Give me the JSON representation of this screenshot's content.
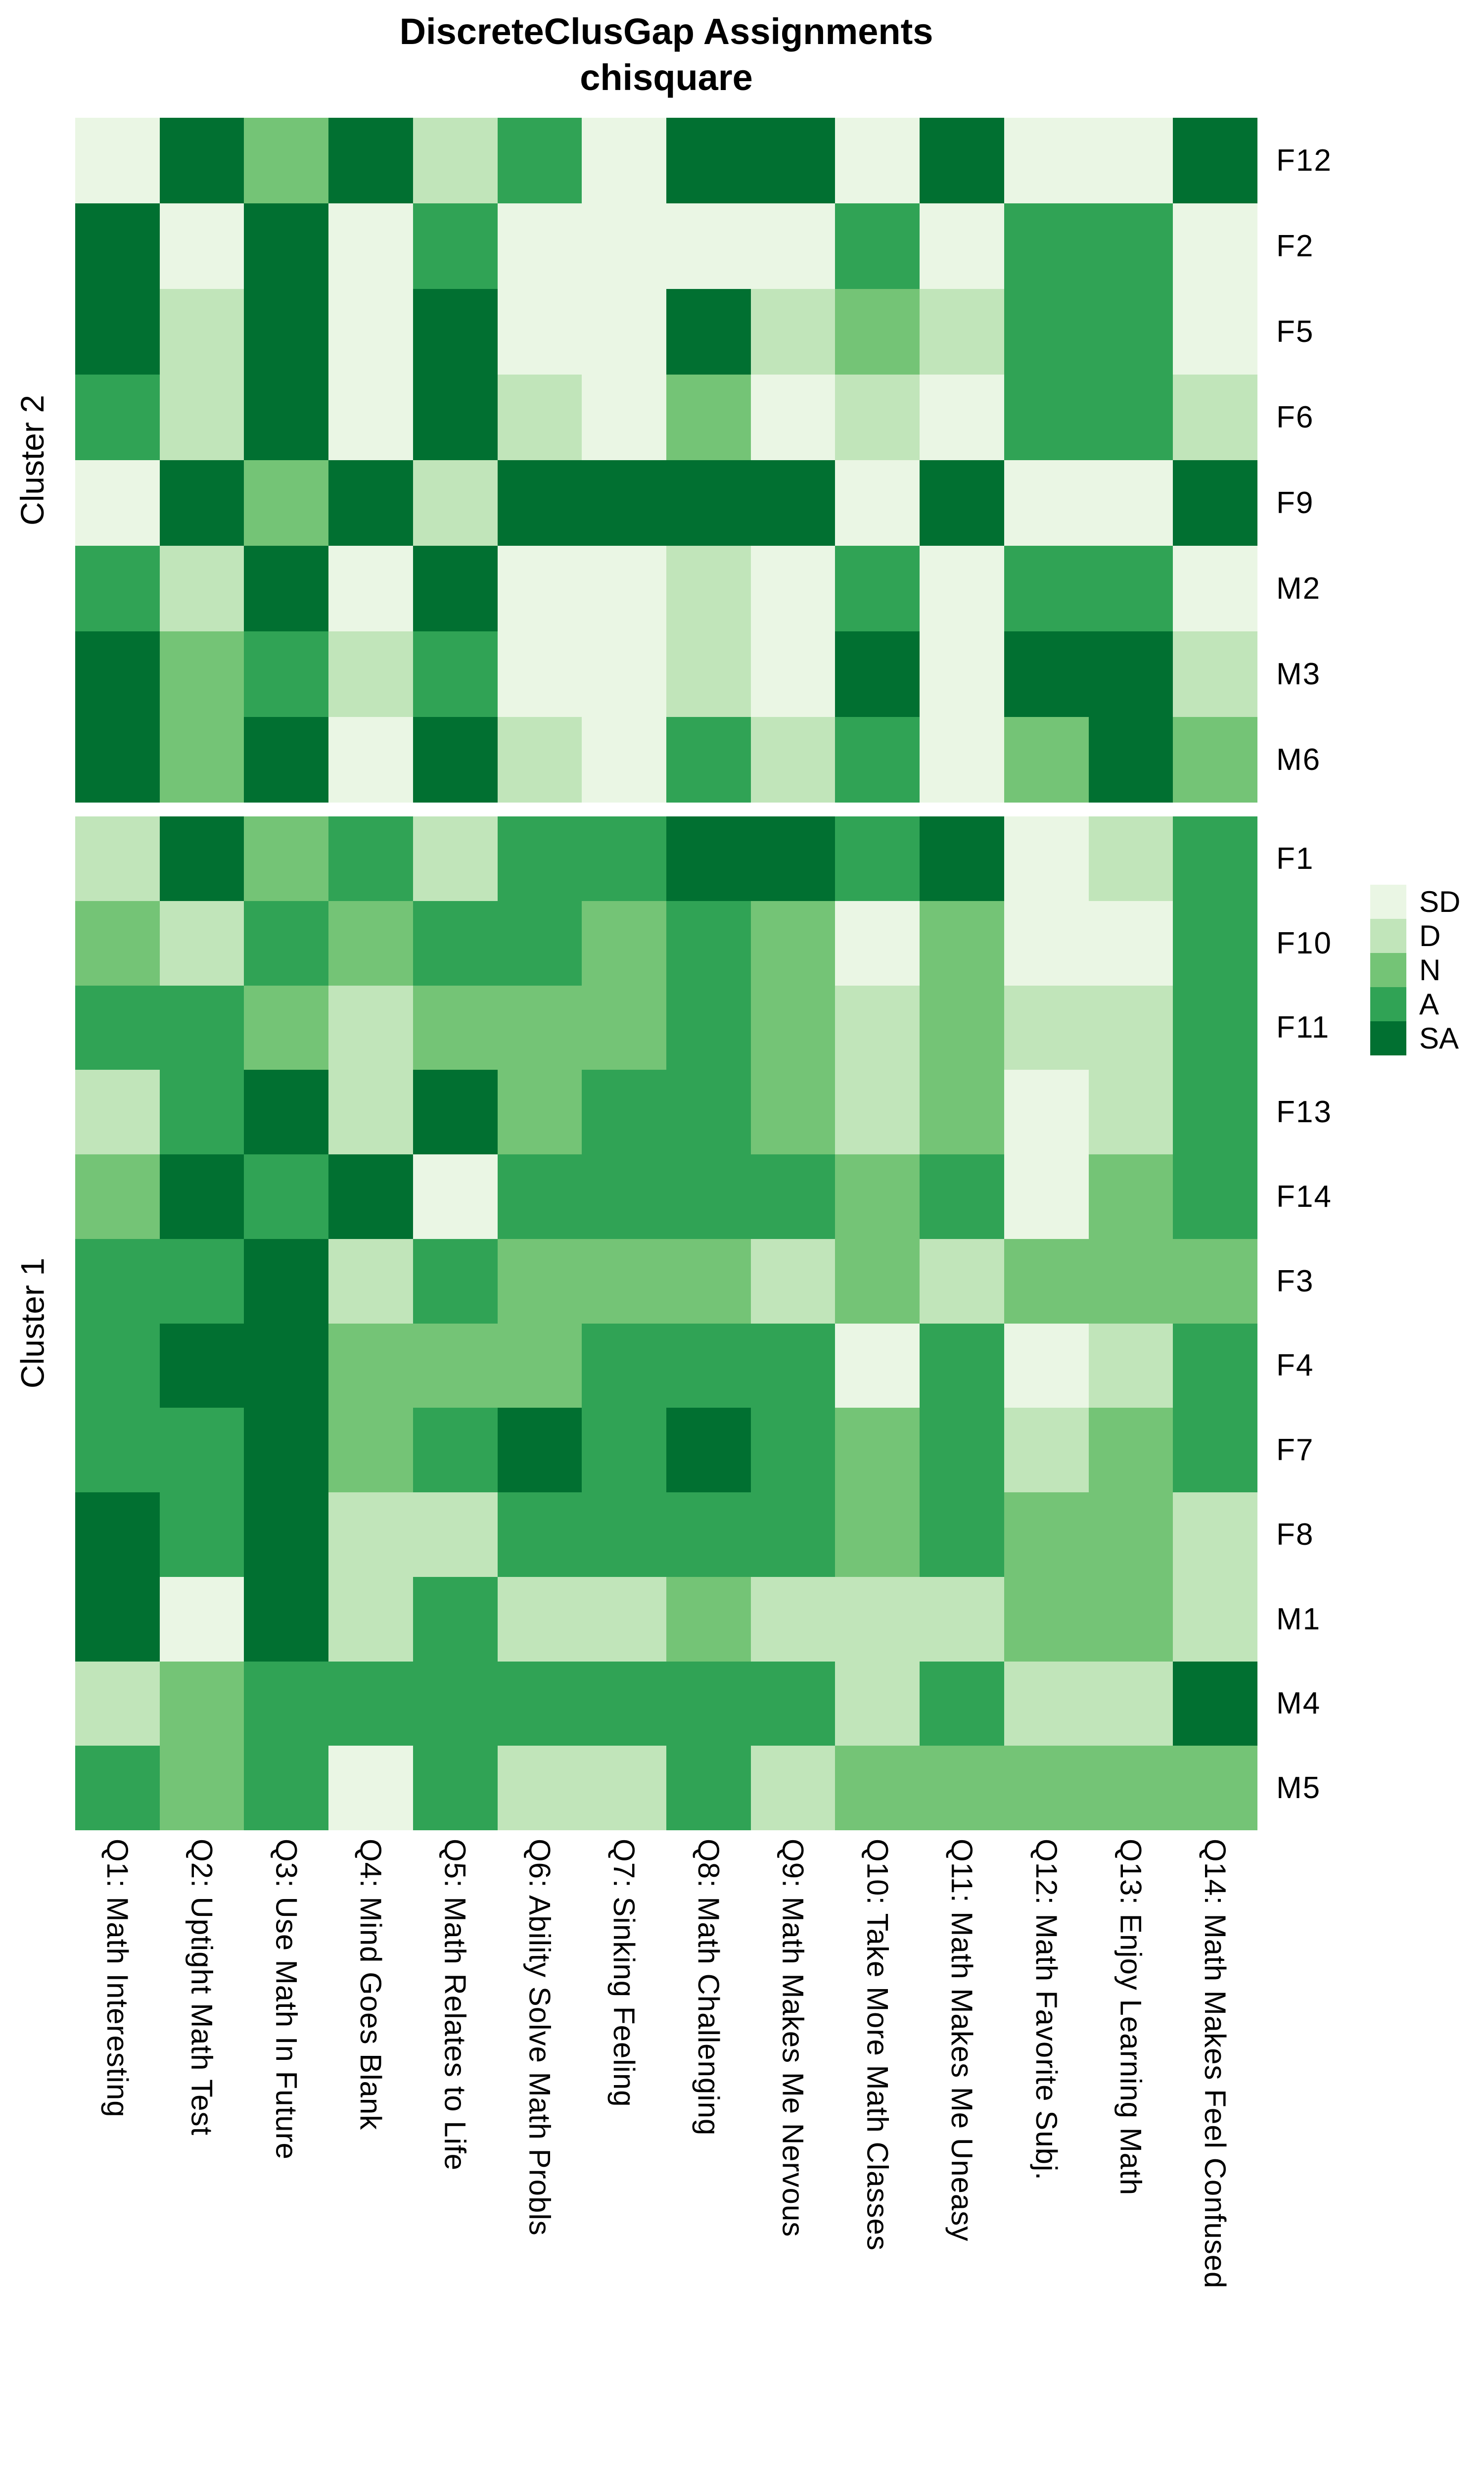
{
  "chart_data": {
    "type": "heatmap",
    "title": "DiscreteClusGap Assignments chisquare",
    "title_lines": [
      "DiscreteClusGap Assignments",
      "chisquare"
    ],
    "x_labels": [
      "Q1: Math Interesting",
      "Q2: Uptight Math Test",
      "Q3: Use Math In Future",
      "Q4: Mind Goes Blank",
      "Q5: Math Relates to Life",
      "Q6: Ability Solve Math Probls",
      "Q7: Sinking Feeling",
      "Q8: Math Challenging",
      "Q9: Math Makes Me Nervous",
      "Q10: Take More Math Classes",
      "Q11: Math Makes Me Uneasy",
      "Q12: Math Favorite Subj.",
      "Q13: Enjoy Learning Math",
      "Q14: Math Makes Feel Confused"
    ],
    "value_levels": [
      "SD",
      "D",
      "N",
      "A",
      "SA"
    ],
    "value_scale": {
      "SD": "#EAF6E4",
      "D": "#C1E5BA",
      "N": "#74C476",
      "A": "#30A355",
      "SA": "#017031"
    },
    "legend": [
      {
        "label": "SD",
        "color": "#EAF6E4"
      },
      {
        "label": "D",
        "color": "#C1E5BA"
      },
      {
        "label": "N",
        "color": "#74C476"
      },
      {
        "label": "A",
        "color": "#30A355"
      },
      {
        "label": "SA",
        "color": "#017031"
      }
    ],
    "row_groups": [
      {
        "group": "Cluster 2",
        "rows": [
          {
            "id": "F12",
            "values": [
              "SD",
              "SA",
              "N",
              "SA",
              "D",
              "A",
              "SD",
              "SA",
              "SA",
              "SD",
              "SA",
              "SD",
              "SD",
              "SA"
            ]
          },
          {
            "id": "F2",
            "values": [
              "SA",
              "SD",
              "SA",
              "SD",
              "A",
              "SD",
              "SD",
              "SD",
              "SD",
              "A",
              "SD",
              "A",
              "A",
              "SD"
            ]
          },
          {
            "id": "F5",
            "values": [
              "SA",
              "D",
              "SA",
              "SD",
              "SA",
              "SD",
              "SD",
              "SA",
              "D",
              "N",
              "D",
              "A",
              "A",
              "SD"
            ]
          },
          {
            "id": "F6",
            "values": [
              "A",
              "D",
              "SA",
              "SD",
              "SA",
              "D",
              "SD",
              "N",
              "SD",
              "D",
              "SD",
              "A",
              "A",
              "D"
            ]
          },
          {
            "id": "F9",
            "values": [
              "SD",
              "SA",
              "N",
              "SA",
              "D",
              "SA",
              "SA",
              "SA",
              "SA",
              "SD",
              "SA",
              "SD",
              "SD",
              "SA"
            ]
          },
          {
            "id": "M2",
            "values": [
              "A",
              "D",
              "SA",
              "SD",
              "SA",
              "SD",
              "SD",
              "D",
              "SD",
              "A",
              "SD",
              "A",
              "A",
              "SD"
            ]
          },
          {
            "id": "M3",
            "values": [
              "SA",
              "N",
              "A",
              "D",
              "A",
              "SD",
              "SD",
              "D",
              "SD",
              "SA",
              "SD",
              "SA",
              "SA",
              "D"
            ]
          },
          {
            "id": "M6",
            "values": [
              "SA",
              "N",
              "SA",
              "SD",
              "SA",
              "D",
              "SD",
              "A",
              "D",
              "A",
              "SD",
              "N",
              "SA",
              "N"
            ]
          }
        ]
      },
      {
        "group": "Cluster 1",
        "rows": [
          {
            "id": "F1",
            "values": [
              "D",
              "SA",
              "N",
              "A",
              "D",
              "A",
              "A",
              "SA",
              "SA",
              "A",
              "SA",
              "SD",
              "D",
              "A"
            ]
          },
          {
            "id": "F10",
            "values": [
              "N",
              "D",
              "A",
              "N",
              "A",
              "A",
              "N",
              "A",
              "N",
              "SD",
              "N",
              "SD",
              "SD",
              "A"
            ]
          },
          {
            "id": "F11",
            "values": [
              "A",
              "A",
              "N",
              "D",
              "N",
              "N",
              "N",
              "A",
              "N",
              "D",
              "N",
              "D",
              "D",
              "A"
            ]
          },
          {
            "id": "F13",
            "values": [
              "D",
              "A",
              "SA",
              "D",
              "SA",
              "N",
              "A",
              "A",
              "N",
              "D",
              "N",
              "SD",
              "D",
              "A"
            ]
          },
          {
            "id": "F14",
            "values": [
              "N",
              "SA",
              "A",
              "SA",
              "SD",
              "A",
              "A",
              "A",
              "A",
              "N",
              "A",
              "SD",
              "N",
              "A"
            ]
          },
          {
            "id": "F3",
            "values": [
              "A",
              "A",
              "SA",
              "D",
              "A",
              "N",
              "N",
              "N",
              "D",
              "N",
              "D",
              "N",
              "N",
              "N"
            ]
          },
          {
            "id": "F4",
            "values": [
              "A",
              "SA",
              "SA",
              "N",
              "N",
              "N",
              "A",
              "A",
              "A",
              "SD",
              "A",
              "SD",
              "D",
              "A"
            ]
          },
          {
            "id": "F7",
            "values": [
              "A",
              "A",
              "SA",
              "N",
              "A",
              "SA",
              "A",
              "SA",
              "A",
              "N",
              "A",
              "D",
              "N",
              "A"
            ]
          },
          {
            "id": "F8",
            "values": [
              "SA",
              "A",
              "SA",
              "D",
              "D",
              "A",
              "A",
              "A",
              "A",
              "N",
              "A",
              "N",
              "N",
              "D"
            ]
          },
          {
            "id": "M1",
            "values": [
              "SA",
              "SD",
              "SA",
              "D",
              "A",
              "D",
              "D",
              "N",
              "D",
              "D",
              "D",
              "N",
              "N",
              "D"
            ]
          },
          {
            "id": "M4",
            "values": [
              "D",
              "N",
              "A",
              "A",
              "A",
              "A",
              "A",
              "A",
              "A",
              "D",
              "A",
              "D",
              "D",
              "SA"
            ]
          },
          {
            "id": "M5",
            "values": [
              "A",
              "N",
              "A",
              "SD",
              "A",
              "D",
              "D",
              "A",
              "D",
              "N",
              "N",
              "N",
              "N",
              "N"
            ]
          }
        ]
      }
    ],
    "layout": {
      "legend_position": "right-middle",
      "grid_lines": false,
      "cluster_gap": true,
      "column_labels_rotated": true,
      "row_labels_side": "right"
    }
  }
}
